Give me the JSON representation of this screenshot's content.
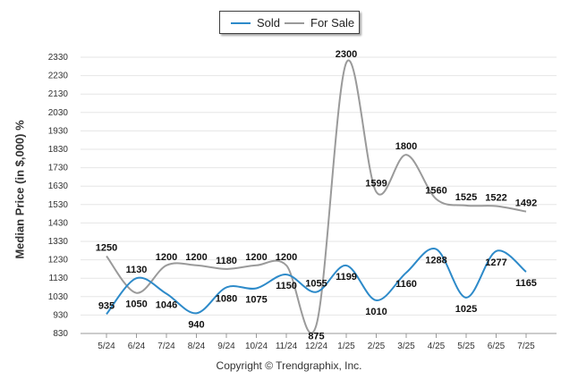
{
  "chart_data": {
    "type": "line",
    "categories": [
      "5/24",
      "6/24",
      "7/24",
      "8/24",
      "9/24",
      "10/24",
      "11/24",
      "12/24",
      "1/25",
      "2/25",
      "3/25",
      "4/25",
      "5/25",
      "6/25",
      "7/25"
    ],
    "series": [
      {
        "name": "Sold",
        "color": "#2d8ac9",
        "values": [
          935,
          1130,
          1046,
          940,
          1080,
          1075,
          1150,
          1055,
          1199,
          1010,
          1160,
          1288,
          1025,
          1277,
          1165
        ]
      },
      {
        "name": "For Sale",
        "color": "#9a9a9a",
        "values": [
          1250,
          1050,
          1200,
          1200,
          1180,
          1200,
          1200,
          875,
          2300,
          1599,
          1800,
          1560,
          1525,
          1522,
          1492
        ]
      }
    ],
    "ylabel": "Median Price (in $,000) %",
    "xlabel": "",
    "yticks": [
      830,
      930,
      1030,
      1130,
      1230,
      1330,
      1430,
      1530,
      1630,
      1730,
      1830,
      1930,
      2030,
      2130,
      2230,
      2330
    ],
    "ylim": [
      830,
      2370
    ],
    "grid": true,
    "legend": "top-center"
  },
  "footer": "Copyright © Trendgraphix, Inc."
}
